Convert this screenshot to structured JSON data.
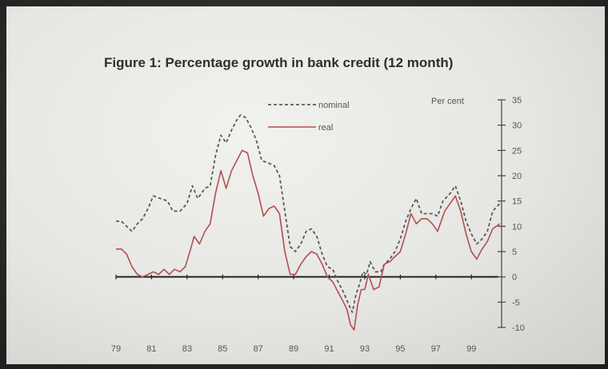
{
  "chart_data": {
    "type": "line",
    "title": "Figure 1: Percentage growth in bank credit (12 month)",
    "ylabel": "Per cent",
    "ylim": [
      -10,
      35
    ],
    "y_ticks": [
      "35",
      "30",
      "25",
      "20",
      "15",
      "10",
      "5",
      "0",
      "-5",
      "-10"
    ],
    "x_ticks": [
      "79",
      "81",
      "83",
      "85",
      "87",
      "89",
      "91",
      "93",
      "95",
      "97",
      "99"
    ],
    "x_range": [
      1979,
      2000.7
    ],
    "grid": false,
    "legend_position": "top-left",
    "series": [
      {
        "name": "nominal",
        "style": "dashed",
        "color": "#5a5a5a",
        "points": [
          [
            1979.0,
            11.0
          ],
          [
            1979.3,
            11.0
          ],
          [
            1979.6,
            10.0
          ],
          [
            1979.9,
            9.0
          ],
          [
            1980.2,
            10.5
          ],
          [
            1980.5,
            11.5
          ],
          [
            1980.8,
            13.5
          ],
          [
            1981.1,
            16.0
          ],
          [
            1981.5,
            15.5
          ],
          [
            1981.9,
            15.0
          ],
          [
            1982.2,
            13.0
          ],
          [
            1982.6,
            13.0
          ],
          [
            1983.0,
            14.5
          ],
          [
            1983.3,
            18.0
          ],
          [
            1983.6,
            15.5
          ],
          [
            1984.0,
            17.5
          ],
          [
            1984.3,
            18.0
          ],
          [
            1984.6,
            24.0
          ],
          [
            1984.9,
            28.0
          ],
          [
            1985.2,
            26.5
          ],
          [
            1985.5,
            29.0
          ],
          [
            1985.8,
            31.0
          ],
          [
            1986.0,
            32.0
          ],
          [
            1986.3,
            31.5
          ],
          [
            1986.6,
            29.5
          ],
          [
            1986.9,
            27.0
          ],
          [
            1987.2,
            23.0
          ],
          [
            1987.6,
            22.5
          ],
          [
            1987.9,
            22.0
          ],
          [
            1988.2,
            20.0
          ],
          [
            1988.5,
            13.0
          ],
          [
            1988.8,
            6.0
          ],
          [
            1989.1,
            5.0
          ],
          [
            1989.4,
            6.5
          ],
          [
            1989.7,
            9.0
          ],
          [
            1990.0,
            9.5
          ],
          [
            1990.3,
            8.0
          ],
          [
            1990.6,
            4.5
          ],
          [
            1990.9,
            2.0
          ],
          [
            1991.2,
            1.5
          ],
          [
            1991.5,
            -1.0
          ],
          [
            1991.8,
            -3.0
          ],
          [
            1992.1,
            -5.5
          ],
          [
            1992.3,
            -7.0
          ],
          [
            1992.5,
            -3.5
          ],
          [
            1992.7,
            -1.5
          ],
          [
            1992.9,
            1.0
          ],
          [
            1993.1,
            0.5
          ],
          [
            1993.3,
            3.0
          ],
          [
            1993.6,
            1.0
          ],
          [
            1993.9,
            1.0
          ],
          [
            1994.1,
            2.5
          ],
          [
            1994.4,
            3.5
          ],
          [
            1994.7,
            5.0
          ],
          [
            1995.0,
            7.5
          ],
          [
            1995.3,
            11.0
          ],
          [
            1995.6,
            13.5
          ],
          [
            1995.9,
            15.5
          ],
          [
            1996.2,
            12.5
          ],
          [
            1996.5,
            12.5
          ],
          [
            1996.8,
            12.5
          ],
          [
            1997.1,
            12.0
          ],
          [
            1997.4,
            15.0
          ],
          [
            1997.8,
            16.5
          ],
          [
            1998.1,
            18.0
          ],
          [
            1998.4,
            15.0
          ],
          [
            1998.7,
            11.0
          ],
          [
            1999.0,
            8.5
          ],
          [
            1999.3,
            6.5
          ],
          [
            1999.6,
            7.5
          ],
          [
            1999.9,
            9.0
          ],
          [
            2000.2,
            13.0
          ],
          [
            2000.6,
            14.5
          ]
        ]
      },
      {
        "name": "real",
        "style": "solid",
        "color": "#b05050",
        "points": [
          [
            1979.0,
            5.5
          ],
          [
            1979.3,
            5.5
          ],
          [
            1979.6,
            4.5
          ],
          [
            1979.9,
            2.0
          ],
          [
            1980.2,
            0.5
          ],
          [
            1980.5,
            0.0
          ],
          [
            1980.8,
            0.5
          ],
          [
            1981.1,
            1.0
          ],
          [
            1981.4,
            0.5
          ],
          [
            1981.7,
            1.5
          ],
          [
            1982.0,
            0.5
          ],
          [
            1982.3,
            1.5
          ],
          [
            1982.6,
            1.0
          ],
          [
            1982.9,
            2.0
          ],
          [
            1983.2,
            5.5
          ],
          [
            1983.4,
            8.0
          ],
          [
            1983.7,
            6.5
          ],
          [
            1984.0,
            9.0
          ],
          [
            1984.3,
            10.5
          ],
          [
            1984.6,
            16.5
          ],
          [
            1984.9,
            21.0
          ],
          [
            1985.2,
            17.5
          ],
          [
            1985.5,
            21.0
          ],
          [
            1985.8,
            23.0
          ],
          [
            1986.1,
            25.0
          ],
          [
            1986.4,
            24.5
          ],
          [
            1986.7,
            20.0
          ],
          [
            1987.0,
            16.5
          ],
          [
            1987.3,
            12.0
          ],
          [
            1987.6,
            13.5
          ],
          [
            1987.9,
            14.0
          ],
          [
            1988.2,
            12.5
          ],
          [
            1988.5,
            5.0
          ],
          [
            1988.8,
            0.5
          ],
          [
            1989.1,
            0.5
          ],
          [
            1989.4,
            2.5
          ],
          [
            1989.7,
            4.0
          ],
          [
            1990.0,
            5.0
          ],
          [
            1990.3,
            4.5
          ],
          [
            1990.6,
            2.5
          ],
          [
            1990.9,
            0.0
          ],
          [
            1991.2,
            -1.0
          ],
          [
            1991.5,
            -3.0
          ],
          [
            1991.8,
            -5.0
          ],
          [
            1992.0,
            -6.5
          ],
          [
            1992.2,
            -9.5
          ],
          [
            1992.4,
            -10.5
          ],
          [
            1992.6,
            -5.5
          ],
          [
            1992.8,
            -2.5
          ],
          [
            1993.0,
            -2.5
          ],
          [
            1993.2,
            0.5
          ],
          [
            1993.5,
            -2.5
          ],
          [
            1993.8,
            -2.0
          ],
          [
            1994.1,
            2.5
          ],
          [
            1994.4,
            3.0
          ],
          [
            1994.7,
            4.0
          ],
          [
            1995.0,
            5.0
          ],
          [
            1995.3,
            8.5
          ],
          [
            1995.6,
            12.5
          ],
          [
            1995.9,
            10.5
          ],
          [
            1996.2,
            11.5
          ],
          [
            1996.5,
            11.5
          ],
          [
            1996.8,
            10.5
          ],
          [
            1997.1,
            9.0
          ],
          [
            1997.5,
            13.0
          ],
          [
            1997.8,
            14.5
          ],
          [
            1998.1,
            16.0
          ],
          [
            1998.4,
            13.0
          ],
          [
            1998.7,
            8.5
          ],
          [
            1999.0,
            5.0
          ],
          [
            1999.3,
            3.5
          ],
          [
            1999.6,
            5.5
          ],
          [
            1999.9,
            7.0
          ],
          [
            2000.2,
            9.5
          ],
          [
            2000.6,
            10.5
          ]
        ]
      }
    ]
  }
}
